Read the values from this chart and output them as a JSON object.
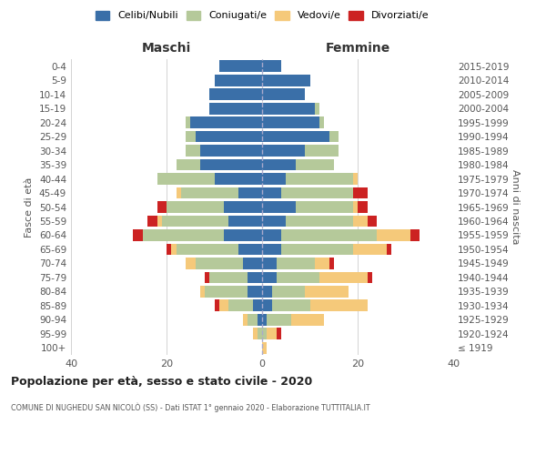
{
  "age_groups": [
    "100+",
    "95-99",
    "90-94",
    "85-89",
    "80-84",
    "75-79",
    "70-74",
    "65-69",
    "60-64",
    "55-59",
    "50-54",
    "45-49",
    "40-44",
    "35-39",
    "30-34",
    "25-29",
    "20-24",
    "15-19",
    "10-14",
    "5-9",
    "0-4"
  ],
  "birth_years": [
    "≤ 1919",
    "1920-1924",
    "1925-1929",
    "1930-1934",
    "1935-1939",
    "1940-1944",
    "1945-1949",
    "1950-1954",
    "1955-1959",
    "1960-1964",
    "1965-1969",
    "1970-1974",
    "1975-1979",
    "1980-1984",
    "1985-1989",
    "1990-1994",
    "1995-1999",
    "2000-2004",
    "2005-2009",
    "2010-2014",
    "2015-2019"
  ],
  "colors": {
    "celibi": "#3a6fa8",
    "coniugati": "#b5c99a",
    "vedovi": "#f5c97a",
    "divorziati": "#cc2222"
  },
  "males": {
    "celibi": [
      0,
      0,
      1,
      2,
      3,
      3,
      4,
      5,
      8,
      7,
      8,
      5,
      10,
      13,
      13,
      14,
      15,
      11,
      11,
      10,
      9
    ],
    "coniugati": [
      0,
      1,
      2,
      5,
      9,
      8,
      10,
      13,
      17,
      14,
      12,
      12,
      12,
      5,
      3,
      2,
      1,
      0,
      0,
      0,
      0
    ],
    "vedovi": [
      0,
      1,
      1,
      2,
      1,
      0,
      2,
      1,
      0,
      1,
      0,
      1,
      0,
      0,
      0,
      0,
      0,
      0,
      0,
      0,
      0
    ],
    "divorziati": [
      0,
      0,
      0,
      1,
      0,
      1,
      0,
      1,
      2,
      2,
      2,
      0,
      0,
      0,
      0,
      0,
      0,
      0,
      0,
      0,
      0
    ]
  },
  "females": {
    "celibi": [
      0,
      0,
      1,
      2,
      2,
      3,
      3,
      4,
      4,
      5,
      7,
      4,
      5,
      7,
      9,
      14,
      12,
      11,
      9,
      10,
      4
    ],
    "coniugati": [
      0,
      1,
      5,
      8,
      7,
      9,
      8,
      15,
      20,
      14,
      12,
      15,
      14,
      8,
      7,
      2,
      1,
      1,
      0,
      0,
      0
    ],
    "vedovi": [
      1,
      2,
      7,
      12,
      9,
      10,
      3,
      7,
      7,
      3,
      1,
      0,
      1,
      0,
      0,
      0,
      0,
      0,
      0,
      0,
      0
    ],
    "divorziati": [
      0,
      1,
      0,
      0,
      0,
      1,
      1,
      1,
      2,
      2,
      2,
      3,
      0,
      0,
      0,
      0,
      0,
      0,
      0,
      0,
      0
    ]
  },
  "title": "Popolazione per età, sesso e stato civile - 2020",
  "subtitle": "COMUNE DI NUGHEDU SAN NICOLÒ (SS) - Dati ISTAT 1° gennaio 2020 - Elaborazione TUTTITALIA.IT",
  "ylabel_left": "Fasce di età",
  "ylabel_right": "Anni di nascita",
  "xlabel_left": "Maschi",
  "xlabel_right": "Femmine",
  "xlim": 40,
  "legend_labels": [
    "Celibi/Nubili",
    "Coniugati/e",
    "Vedovi/e",
    "Divorziati/e"
  ],
  "background_color": "#ffffff",
  "grid_color": "#cccccc"
}
